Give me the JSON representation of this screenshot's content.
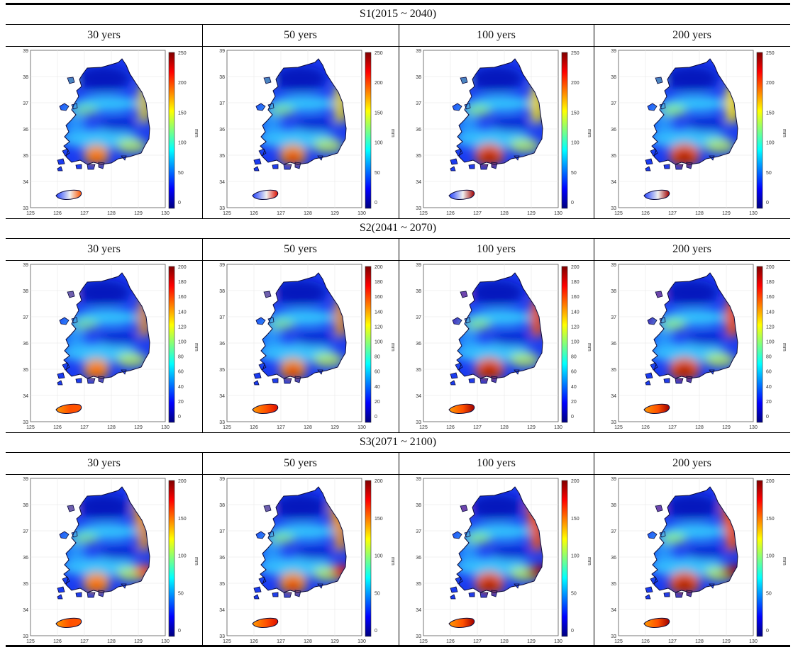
{
  "colormap": [
    "#00007f",
    "#0000ff",
    "#007fff",
    "#00ffff",
    "#7fff7f",
    "#ffff00",
    "#ff7f00",
    "#ff0000",
    "#7f0000"
  ],
  "axes": {
    "lon_ticks": [
      "125",
      "126",
      "127",
      "128",
      "129",
      "130"
    ],
    "lat_ticks": [
      "39",
      "38",
      "37",
      "36",
      "35",
      "34",
      "33"
    ],
    "colorbar_unit": "mm"
  },
  "periods": [
    "30  yers",
    "50  yers",
    "100  yers",
    "200  yers"
  ],
  "scenarios": [
    {
      "label": "S1(2015 ~ 2040)",
      "colorbar_ticks": [
        "250",
        "200",
        "150",
        "100",
        "50",
        "0"
      ],
      "hotspots": [
        0.55,
        0.7,
        0.85,
        1.0
      ]
    },
    {
      "label": "S2(2041 ~ 2070)",
      "colorbar_ticks": [
        "200",
        "180",
        "160",
        "140",
        "120",
        "100",
        "80",
        "60",
        "40",
        "20",
        "0"
      ],
      "hotspots": [
        0.6,
        0.7,
        0.85,
        1.0
      ]
    },
    {
      "label": "S3(2071 ~ 2100)",
      "colorbar_ticks": [
        "200",
        "150",
        "100",
        "50",
        "0"
      ],
      "hotspots": [
        0.65,
        0.75,
        0.88,
        1.0
      ]
    }
  ]
}
